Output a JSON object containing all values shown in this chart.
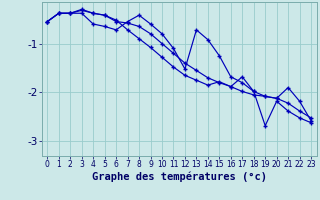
{
  "title": "Graphe des températures (°c)",
  "background_color": "#cce8e8",
  "line_color": "#0000bb",
  "grid_color": "#99cccc",
  "xlim": [
    -0.5,
    23.5
  ],
  "ylim": [
    -3.3,
    -0.15
  ],
  "yticks": [
    -3,
    -2,
    -1
  ],
  "ytick_labels": [
    "-3",
    "-2",
    "-1"
  ],
  "xticks": [
    0,
    1,
    2,
    3,
    4,
    5,
    6,
    7,
    8,
    9,
    10,
    11,
    12,
    13,
    14,
    15,
    16,
    17,
    18,
    19,
    20,
    21,
    22,
    23
  ],
  "line1_x": [
    0,
    1,
    2,
    3,
    4,
    5,
    6,
    7,
    8,
    9,
    10,
    11,
    12,
    13,
    14,
    15,
    16,
    17,
    18,
    19,
    20,
    21,
    22,
    23
  ],
  "line1_y": [
    -0.55,
    -0.38,
    -0.38,
    -0.32,
    -0.38,
    -0.42,
    -0.55,
    -0.58,
    -0.65,
    -0.8,
    -1.0,
    -1.2,
    -1.4,
    -1.55,
    -1.7,
    -1.8,
    -1.88,
    -1.98,
    -2.05,
    -2.08,
    -2.12,
    -2.22,
    -2.38,
    -2.52
  ],
  "line2_x": [
    0,
    1,
    2,
    3,
    4,
    5,
    6,
    7,
    8,
    9,
    10,
    11,
    12,
    13,
    14,
    15,
    16,
    17,
    18,
    19,
    20,
    21,
    22,
    23
  ],
  "line2_y": [
    -0.55,
    -0.38,
    -0.38,
    -0.38,
    -0.6,
    -0.65,
    -0.72,
    -0.55,
    -0.42,
    -0.6,
    -0.8,
    -1.1,
    -1.52,
    -0.72,
    -0.92,
    -1.25,
    -1.68,
    -1.8,
    -1.98,
    -2.08,
    -2.12,
    -1.9,
    -2.18,
    -2.58
  ],
  "line3_x": [
    0,
    1,
    2,
    3,
    4,
    5,
    6,
    7,
    8,
    9,
    10,
    11,
    12,
    13,
    14,
    15,
    16,
    17,
    18,
    19,
    20,
    21,
    22,
    23
  ],
  "line3_y": [
    -0.55,
    -0.38,
    -0.38,
    -0.3,
    -0.38,
    -0.42,
    -0.52,
    -0.72,
    -0.9,
    -1.08,
    -1.28,
    -1.48,
    -1.65,
    -1.75,
    -1.85,
    -1.78,
    -1.88,
    -1.68,
    -1.98,
    -2.68,
    -2.18,
    -2.38,
    -2.52,
    -2.62
  ],
  "xlabel_fontsize": 7.5,
  "ytick_fontsize": 7.5,
  "xtick_fontsize": 5.5
}
